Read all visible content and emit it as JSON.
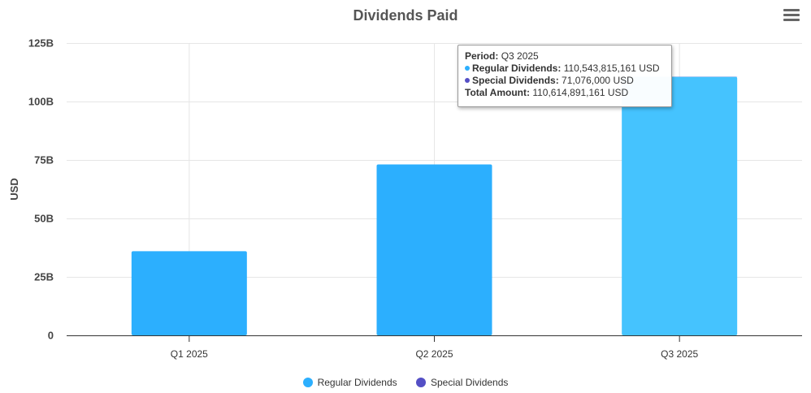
{
  "chart_data": {
    "type": "bar",
    "title": "Dividends Paid",
    "xlabel": "",
    "ylabel": "USD",
    "categories": [
      "Q1 2025",
      "Q2 2025",
      "Q3 2025"
    ],
    "series": [
      {
        "name": "Regular Dividends",
        "color": "#2caffe",
        "hover_color": "#45c3fe",
        "values": [
          36000000000,
          73100000000,
          110543815161
        ]
      },
      {
        "name": "Special Dividends",
        "color": "#544fc5",
        "values": [
          0,
          0,
          71076000
        ]
      }
    ],
    "ylim": [
      0,
      125000000000
    ],
    "yticks": [
      0,
      25000000000,
      50000000000,
      75000000000,
      100000000000,
      125000000000
    ],
    "ytick_labels": [
      "0",
      "25B",
      "50B",
      "75B",
      "100B",
      "125B"
    ],
    "grid": true,
    "legend": "bottom-center",
    "highlighted_category": "Q3 2025"
  },
  "menu": {
    "icon": "hamburger-menu-icon"
  },
  "tooltip": {
    "period_label": "Period:",
    "period_value": "Q3 2025",
    "regular_label": "Regular Dividends:",
    "regular_value": "110,543,815,161 USD",
    "special_label": "Special Dividends:",
    "special_value": "71,076,000 USD",
    "total_label": "Total Amount:",
    "total_value": "110,614,891,161 USD"
  }
}
